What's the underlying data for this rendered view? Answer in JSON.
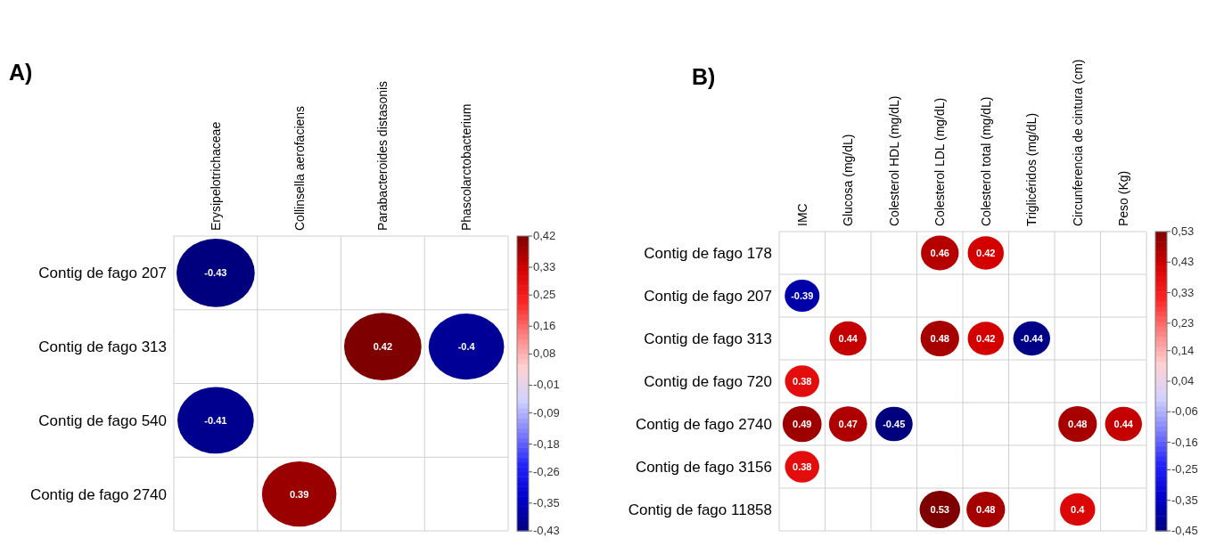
{
  "chart_data": [
    {
      "type": "heatmap",
      "title": "A)",
      "categories": [
        "Erysipelotrichaceae",
        "Collinsella aerofaciens",
        "Parabacteroides distasonis",
        "Phascolarctobacterium"
      ],
      "y_categories": [
        "Contig de fago 207",
        "Contig de fago 313",
        "Contig de fago 540",
        "Contig de fago 2740"
      ],
      "cells": [
        [
          -0.43,
          null,
          null,
          null
        ],
        [
          null,
          null,
          0.42,
          -0.4
        ],
        [
          -0.41,
          null,
          null,
          null
        ],
        [
          null,
          0.39,
          null,
          null
        ]
      ],
      "data_labels": true,
      "clim": [
        -0.43,
        0.42
      ],
      "cticks": [
        {
          "value": 0.42,
          "label": "0,42"
        },
        {
          "value": 0.33,
          "label": "0,33"
        },
        {
          "value": 0.25,
          "label": "0,25"
        },
        {
          "value": 0.16,
          "label": "0,16"
        },
        {
          "value": 0.08,
          "label": "0,08"
        },
        {
          "value": -0.01,
          "label": "-0,01"
        },
        {
          "value": -0.09,
          "label": "-0,09"
        },
        {
          "value": -0.18,
          "label": "-0,18"
        },
        {
          "value": -0.26,
          "label": "-0,26"
        },
        {
          "value": -0.35,
          "label": "-0,35"
        },
        {
          "value": -0.43,
          "label": "-0,43"
        }
      ]
    },
    {
      "type": "heatmap",
      "title": "B)",
      "categories": [
        "IMC",
        "Glucosa (mg/dL)",
        "Colesterol HDL (mg/dL)",
        "Colesterol LDL (mg/dL)",
        "Colesterol total (mg/dL)",
        "Triglicéridos (mg/dL)",
        "Circunferencia de cintura (cm)",
        "Peso (Kg)"
      ],
      "y_categories": [
        "Contig de fago 178",
        "Contig de fago 207",
        "Contig de fago 313",
        "Contig de fago 720",
        "Contig de fago 2740",
        "Contig de fago 3156",
        "Contig de fago 11858"
      ],
      "cells": [
        [
          null,
          null,
          null,
          0.46,
          0.42,
          null,
          null,
          null
        ],
        [
          -0.39,
          null,
          null,
          null,
          null,
          null,
          null,
          null
        ],
        [
          null,
          0.44,
          null,
          0.48,
          0.42,
          -0.44,
          null,
          null
        ],
        [
          0.38,
          null,
          null,
          null,
          null,
          null,
          null,
          null
        ],
        [
          0.49,
          0.47,
          -0.45,
          null,
          null,
          null,
          0.48,
          0.44
        ],
        [
          0.38,
          null,
          null,
          null,
          null,
          null,
          null,
          null
        ],
        [
          null,
          null,
          null,
          0.53,
          0.48,
          null,
          0.4,
          null
        ]
      ],
      "data_labels": true,
      "clim": [
        -0.45,
        0.53
      ],
      "cticks": [
        {
          "value": 0.53,
          "label": "0,53"
        },
        {
          "value": 0.43,
          "label": "0,43"
        },
        {
          "value": 0.33,
          "label": "0,33"
        },
        {
          "value": 0.23,
          "label": "0,23"
        },
        {
          "value": 0.14,
          "label": "0,14"
        },
        {
          "value": 0.04,
          "label": "0,04"
        },
        {
          "value": -0.06,
          "label": "-0,06"
        },
        {
          "value": -0.16,
          "label": "-0,16"
        },
        {
          "value": -0.25,
          "label": "-0,25"
        },
        {
          "value": -0.35,
          "label": "-0,35"
        },
        {
          "value": -0.45,
          "label": "-0,45"
        }
      ]
    }
  ]
}
